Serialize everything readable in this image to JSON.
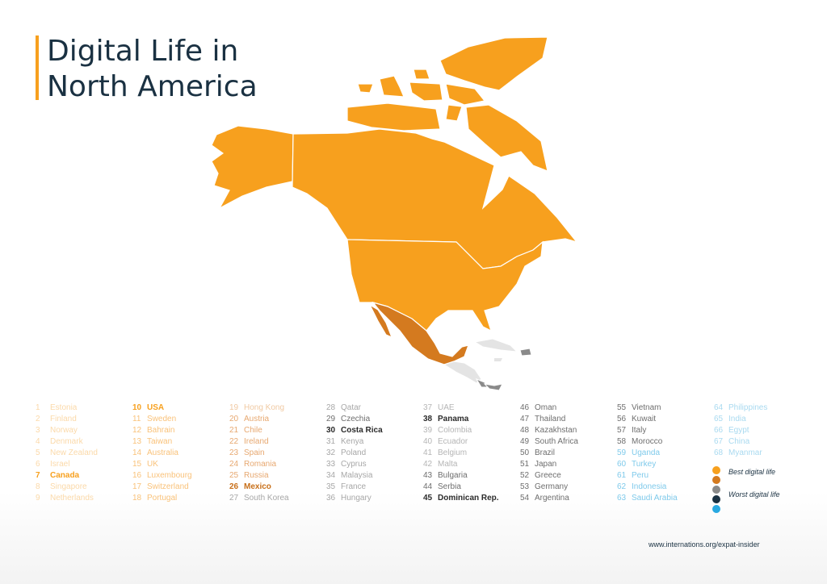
{
  "title": {
    "line1": "Digital Life in",
    "line2": "North America"
  },
  "source": "www.internations.org/expat-insider",
  "colors": {
    "accent": "#f7a01e",
    "best": "#f7a01e",
    "second": "#d47a1f",
    "third": "#8a8a8a",
    "fourth": "#1a3142",
    "worst": "#29a9e1",
    "caribbean_light": "#e4e4e4"
  },
  "map_regions": [
    {
      "name": "Canada",
      "rank": 7,
      "color": "#f7a01e"
    },
    {
      "name": "USA",
      "rank": 10,
      "color": "#f7a01e"
    },
    {
      "name": "Mexico",
      "rank": 26,
      "color": "#d47a1f"
    },
    {
      "name": "Costa Rica",
      "rank": 30,
      "color": "#8a8a8a"
    },
    {
      "name": "Panama",
      "rank": 38,
      "color": "#8a8a8a"
    },
    {
      "name": "Dominican Rep.",
      "rank": 45,
      "color": "#8a8a8a"
    }
  ],
  "ranking_columns": [
    [
      {
        "rank": "1",
        "country": "Estonia",
        "style": "best-faded"
      },
      {
        "rank": "2",
        "country": "Finland",
        "style": "best-faded"
      },
      {
        "rank": "3",
        "country": "Norway",
        "style": "best-faded"
      },
      {
        "rank": "4",
        "country": "Denmark",
        "style": "best-faded"
      },
      {
        "rank": "5",
        "country": "New Zealand",
        "style": "best-faded"
      },
      {
        "rank": "6",
        "country": "Israel",
        "style": "best-faded"
      },
      {
        "rank": "7",
        "country": "Canada",
        "style": "best-highlight"
      },
      {
        "rank": "8",
        "country": "Singapore",
        "style": "best-faded"
      },
      {
        "rank": "9",
        "country": "Netherlands",
        "style": "best-faded"
      }
    ],
    [
      {
        "rank": "10",
        "country": "USA",
        "style": "best-highlight"
      },
      {
        "rank": "11",
        "country": "Sweden",
        "style": "best"
      },
      {
        "rank": "12",
        "country": "Bahrain",
        "style": "best"
      },
      {
        "rank": "13",
        "country": "Taiwan",
        "style": "best"
      },
      {
        "rank": "14",
        "country": "Australia",
        "style": "best"
      },
      {
        "rank": "15",
        "country": "UK",
        "style": "best"
      },
      {
        "rank": "16",
        "country": "Luxembourg",
        "style": "best"
      },
      {
        "rank": "17",
        "country": "Switzerland",
        "style": "best"
      },
      {
        "rank": "18",
        "country": "Portugal",
        "style": "best"
      }
    ],
    [
      {
        "rank": "19",
        "country": "Hong Kong",
        "style": "second-faded"
      },
      {
        "rank": "20",
        "country": "Austria",
        "style": "second"
      },
      {
        "rank": "21",
        "country": "Chile",
        "style": "second"
      },
      {
        "rank": "22",
        "country": "Ireland",
        "style": "second"
      },
      {
        "rank": "23",
        "country": "Spain",
        "style": "second"
      },
      {
        "rank": "24",
        "country": "Romania",
        "style": "second"
      },
      {
        "rank": "25",
        "country": "Russia",
        "style": "second"
      },
      {
        "rank": "26",
        "country": "Mexico",
        "style": "second-highlight"
      },
      {
        "rank": "27",
        "country": "South Korea",
        "style": "grey-faded"
      }
    ],
    [
      {
        "rank": "28",
        "country": "Qatar",
        "style": "grey-faded"
      },
      {
        "rank": "29",
        "country": "Czechia",
        "style": "grey"
      },
      {
        "rank": "30",
        "country": "Costa Rica",
        "style": "grey-highlight"
      },
      {
        "rank": "31",
        "country": "Kenya",
        "style": "grey-faded"
      },
      {
        "rank": "32",
        "country": "Poland",
        "style": "grey-faded"
      },
      {
        "rank": "33",
        "country": "Cyprus",
        "style": "grey-faded"
      },
      {
        "rank": "34",
        "country": "Malaysia",
        "style": "grey-faded"
      },
      {
        "rank": "35",
        "country": "France",
        "style": "grey-faded"
      },
      {
        "rank": "36",
        "country": "Hungary",
        "style": "grey-faded"
      }
    ],
    [
      {
        "rank": "37",
        "country": "UAE",
        "style": "grey-light"
      },
      {
        "rank": "38",
        "country": "Panama",
        "style": "grey-highlight"
      },
      {
        "rank": "39",
        "country": "Colombia",
        "style": "grey-light"
      },
      {
        "rank": "40",
        "country": "Ecuador",
        "style": "grey-light"
      },
      {
        "rank": "41",
        "country": "Belgium",
        "style": "grey-light"
      },
      {
        "rank": "42",
        "country": "Malta",
        "style": "grey-light"
      },
      {
        "rank": "43",
        "country": "Bulgaria",
        "style": "grey"
      },
      {
        "rank": "44",
        "country": "Serbia",
        "style": "grey"
      },
      {
        "rank": "45",
        "country": "Dominican Rep.",
        "style": "grey-highlight"
      }
    ],
    [
      {
        "rank": "46",
        "country": "Oman",
        "style": "grey"
      },
      {
        "rank": "47",
        "country": "Thailand",
        "style": "grey"
      },
      {
        "rank": "48",
        "country": "Kazakhstan",
        "style": "grey"
      },
      {
        "rank": "49",
        "country": "South Africa",
        "style": "grey"
      },
      {
        "rank": "50",
        "country": "Brazil",
        "style": "grey"
      },
      {
        "rank": "51",
        "country": "Japan",
        "style": "grey"
      },
      {
        "rank": "52",
        "country": "Greece",
        "style": "grey"
      },
      {
        "rank": "53",
        "country": "Germany",
        "style": "grey"
      },
      {
        "rank": "54",
        "country": "Argentina",
        "style": "grey"
      }
    ],
    [
      {
        "rank": "55",
        "country": "Vietnam",
        "style": "grey"
      },
      {
        "rank": "56",
        "country": "Kuwait",
        "style": "grey"
      },
      {
        "rank": "57",
        "country": "Italy",
        "style": "grey"
      },
      {
        "rank": "58",
        "country": "Morocco",
        "style": "grey"
      },
      {
        "rank": "59",
        "country": "Uganda",
        "style": "blue"
      },
      {
        "rank": "60",
        "country": "Turkey",
        "style": "blue"
      },
      {
        "rank": "61",
        "country": "Peru",
        "style": "blue"
      },
      {
        "rank": "62",
        "country": "Indonesia",
        "style": "blue"
      },
      {
        "rank": "63",
        "country": "Saudi Arabia",
        "style": "blue"
      }
    ],
    [
      {
        "rank": "64",
        "country": "Philippines",
        "style": "blue-faded"
      },
      {
        "rank": "65",
        "country": "India",
        "style": "blue-faded"
      },
      {
        "rank": "66",
        "country": "Egypt",
        "style": "blue-faded"
      },
      {
        "rank": "67",
        "country": "China",
        "style": "blue-faded"
      },
      {
        "rank": "68",
        "country": "Myanmar",
        "style": "blue-faded"
      }
    ]
  ],
  "legend": {
    "best_label": "Best digital life",
    "worst_label": "Worst digital life",
    "dot_colors": [
      "#f7a01e",
      "#d47a1f",
      "#8a8a8a",
      "#1a3142",
      "#29a9e1"
    ]
  }
}
